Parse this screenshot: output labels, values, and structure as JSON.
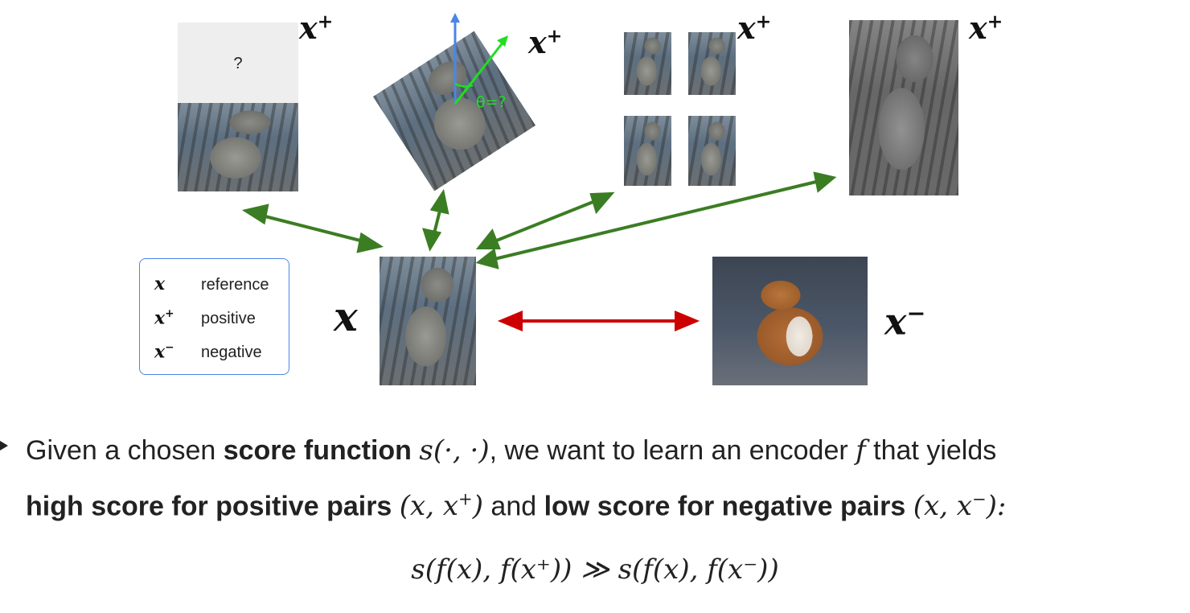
{
  "labels": {
    "x": "x",
    "x_plus": "x+",
    "x_minus": "x−",
    "occlusion_mark": "?",
    "rotation_mark": "θ=?"
  },
  "legend": {
    "rows": [
      {
        "symbol": "x",
        "sup": "",
        "label": "reference"
      },
      {
        "symbol": "x",
        "sup": "+",
        "label": "positive"
      },
      {
        "symbol": "x",
        "sup": "−",
        "label": "negative"
      }
    ]
  },
  "text": {
    "line1": {
      "a": "Given a chosen ",
      "b": "score function",
      "c": "s(·, ·)",
      "d": ", we want to learn an encoder ",
      "e": "f",
      "f": " that yields"
    },
    "line2": {
      "a": "high score for positive pairs",
      "b": "(x, x",
      "b_sup": "+",
      "b_end": ")",
      "c": " and ",
      "d": "low score for negative pairs",
      "e": "(x, x",
      "e_sup": "−",
      "e_end": "):"
    },
    "equation": "s(f(x), f(x⁺)) ≫ s(f(x), f(x⁻))"
  },
  "colors": {
    "positive_arrow": "#3b7d23",
    "negative_arrow": "#cc0000",
    "legend_border": "#4a86e8",
    "rotation_axis_blue": "#4a86e8",
    "rotation_axis_green": "#22dd22"
  }
}
